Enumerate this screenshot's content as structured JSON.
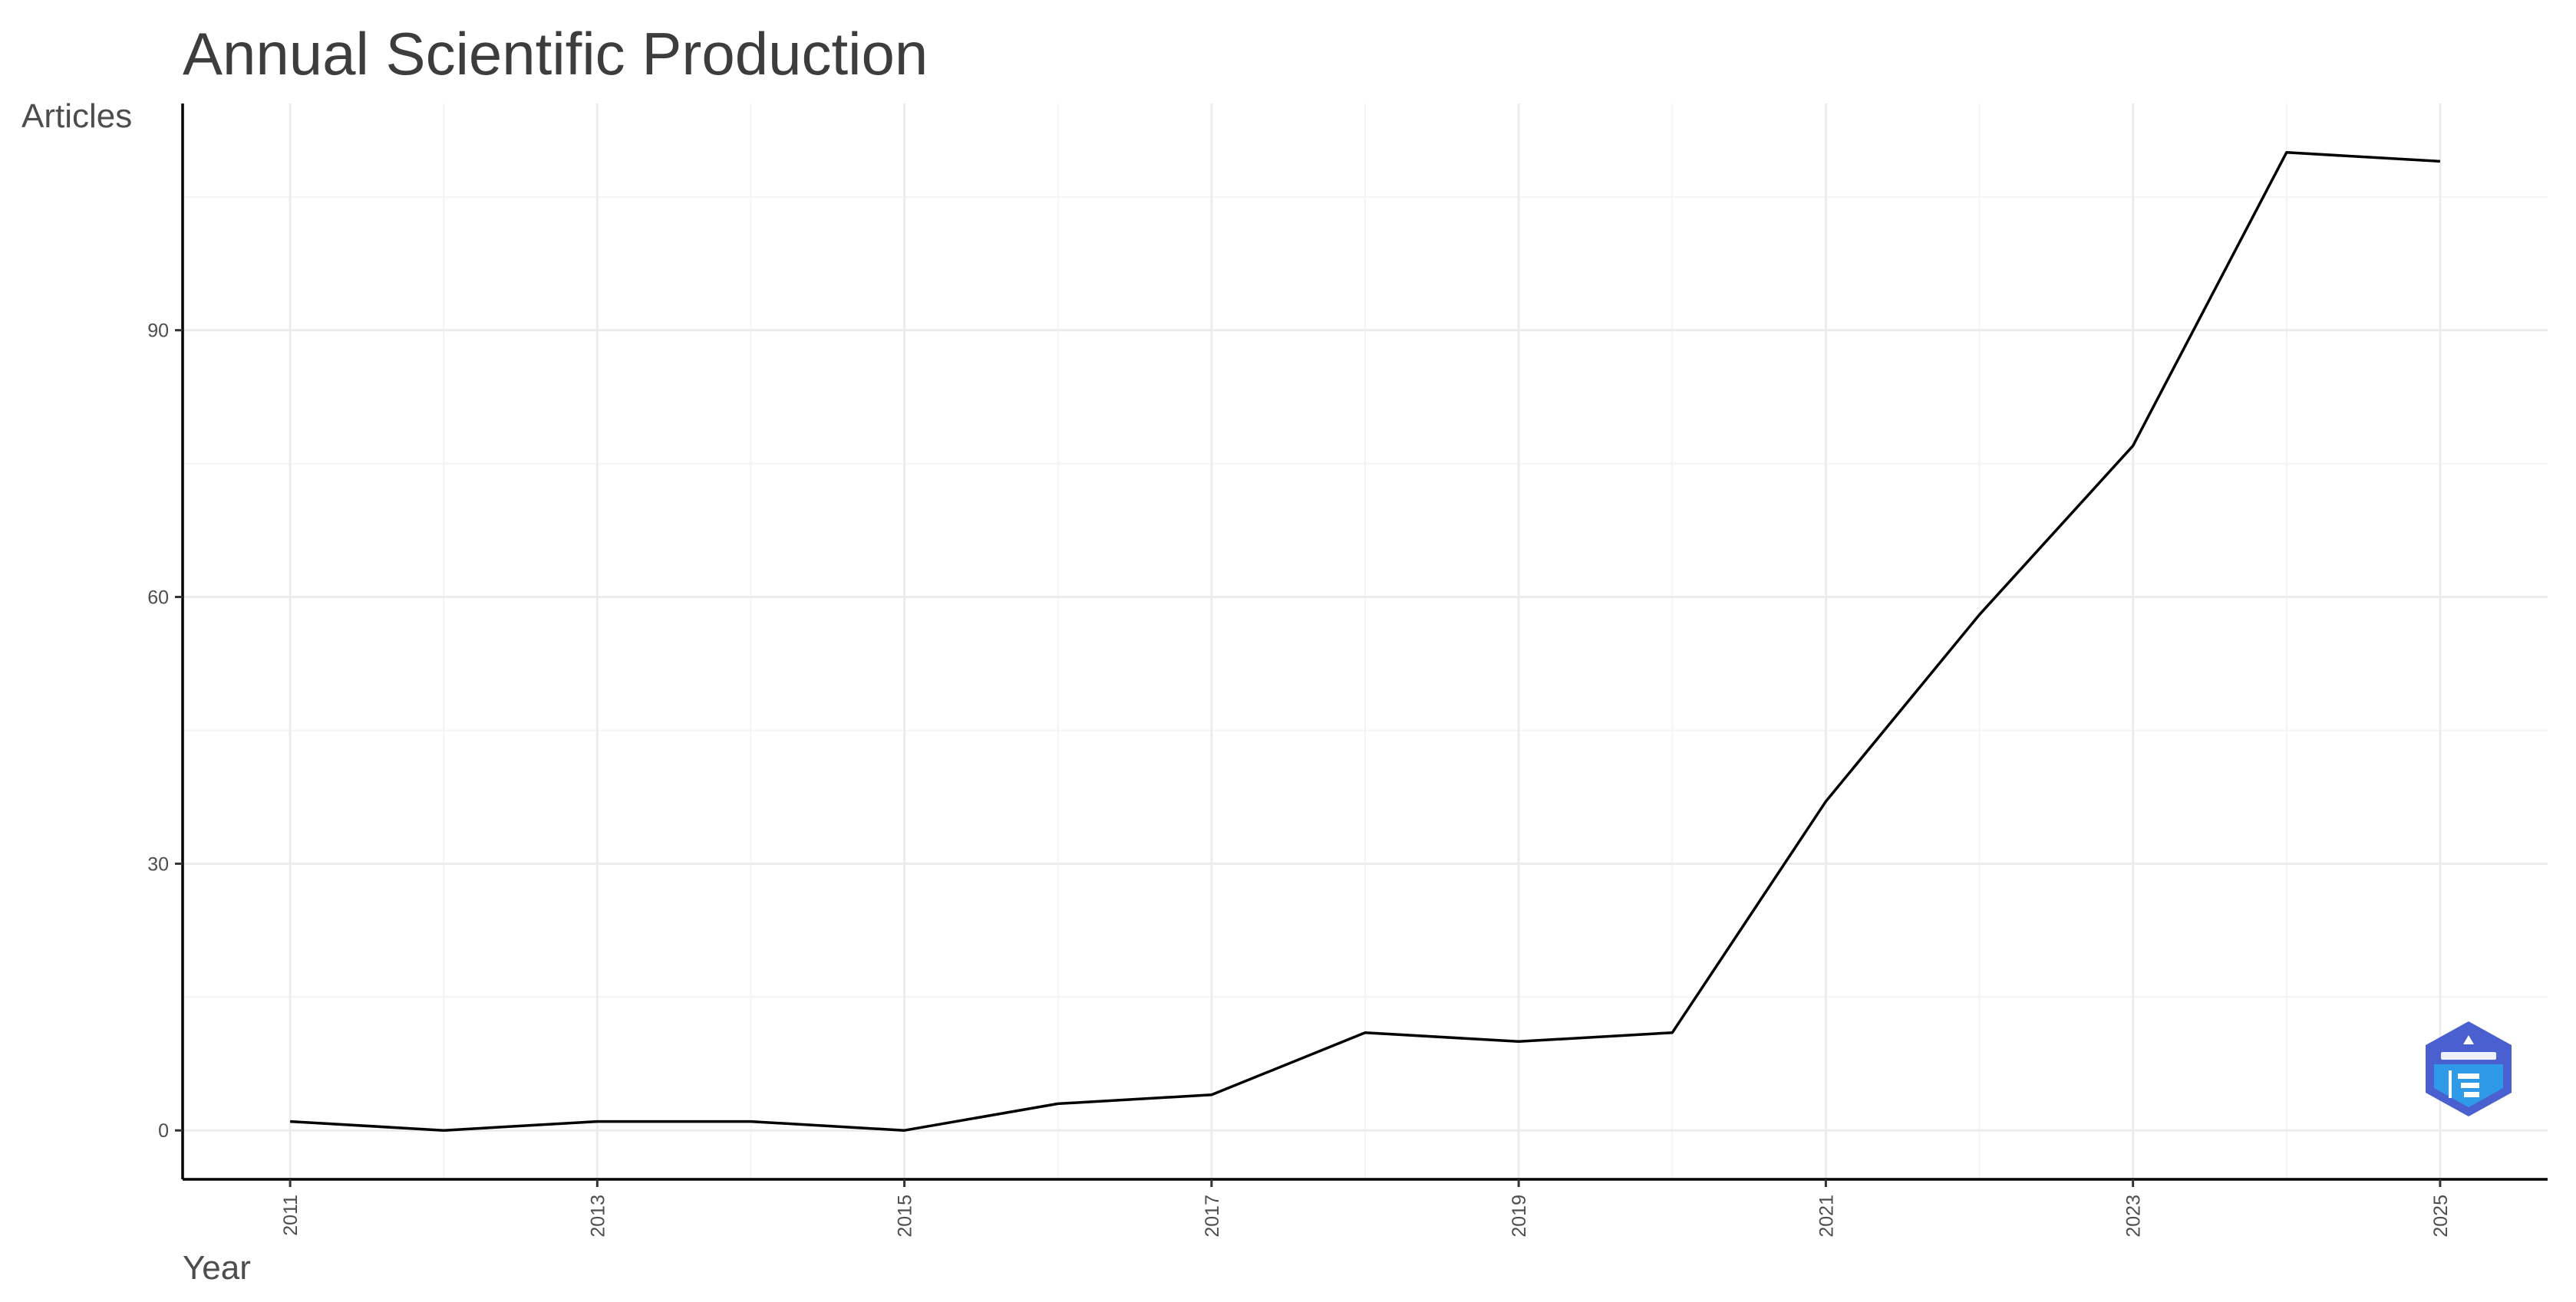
{
  "chart_data": {
    "type": "line",
    "title": "Annual Scientific Production",
    "xlabel": "Year",
    "ylabel": "Articles",
    "x": [
      2011,
      2012,
      2013,
      2014,
      2015,
      2016,
      2017,
      2018,
      2019,
      2020,
      2021,
      2022,
      2023,
      2024,
      2025
    ],
    "series": [
      {
        "values": [
          1,
          0,
          1,
          1,
          0,
          3,
          4,
          11,
          10,
          11,
          37,
          58,
          77,
          110,
          109
        ]
      }
    ],
    "x_ticks": [
      "2011",
      "2013",
      "2015",
      "2017",
      "2019",
      "2021",
      "2023",
      "2025"
    ],
    "y_ticks": [
      "0",
      "30",
      "60",
      "90"
    ],
    "xlim": [
      2010.3,
      2025.7
    ],
    "ylim": [
      -5.5,
      115.5
    ],
    "grid": true,
    "line_color": "#000000",
    "logo_icon": "biblioshiny-hexagon-logo-icon",
    "logo_colors": {
      "fill": "#2f9be8",
      "dark": "#4a5fd0"
    }
  }
}
